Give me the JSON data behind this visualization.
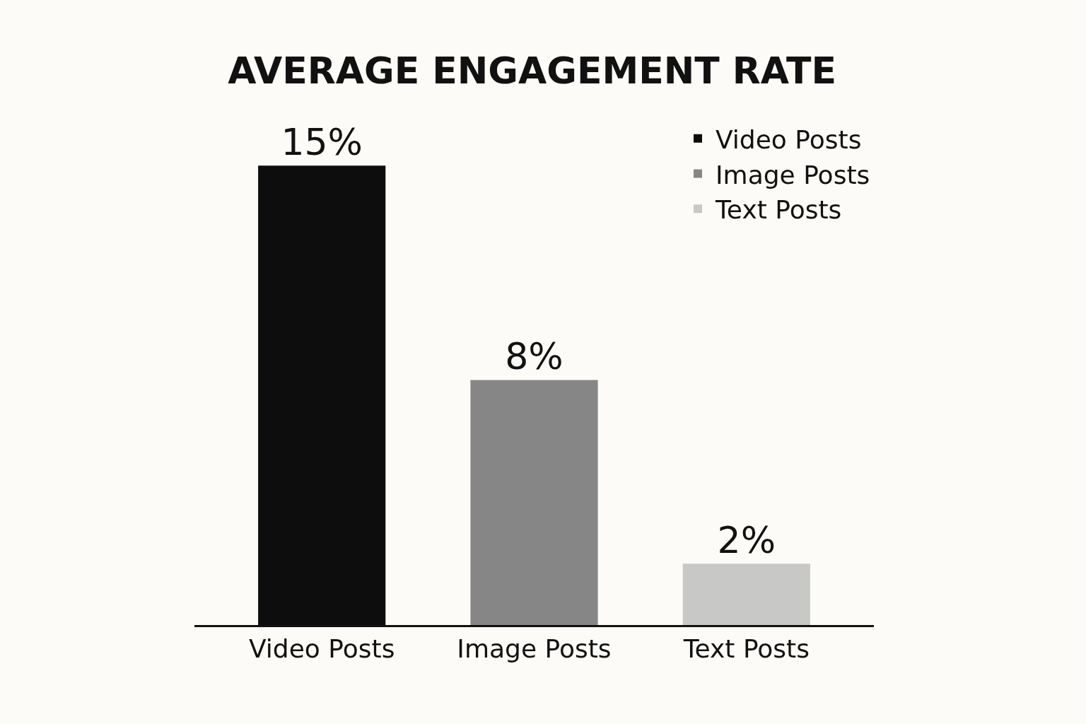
{
  "chart_data": {
    "type": "bar",
    "title": "AVERAGE ENGAGEMENT RATE",
    "categories": [
      "Video Posts",
      "Image Posts",
      "Text Posts"
    ],
    "series": [
      {
        "name": "Video Posts",
        "color": "#0d0d0d",
        "values": [
          15,
          null,
          null
        ],
        "value_labels": [
          "15%",
          null,
          null
        ]
      },
      {
        "name": "Image Posts",
        "color": "#868686",
        "values": [
          null,
          8,
          null
        ],
        "value_labels": [
          null,
          "8%",
          null
        ]
      },
      {
        "name": "Text Posts",
        "color": "#c8c8c6",
        "values": [
          null,
          null,
          2
        ],
        "value_labels": [
          null,
          null,
          "2%"
        ]
      }
    ],
    "legend": "top right",
    "grid": false,
    "tick_labels": "x"
  }
}
